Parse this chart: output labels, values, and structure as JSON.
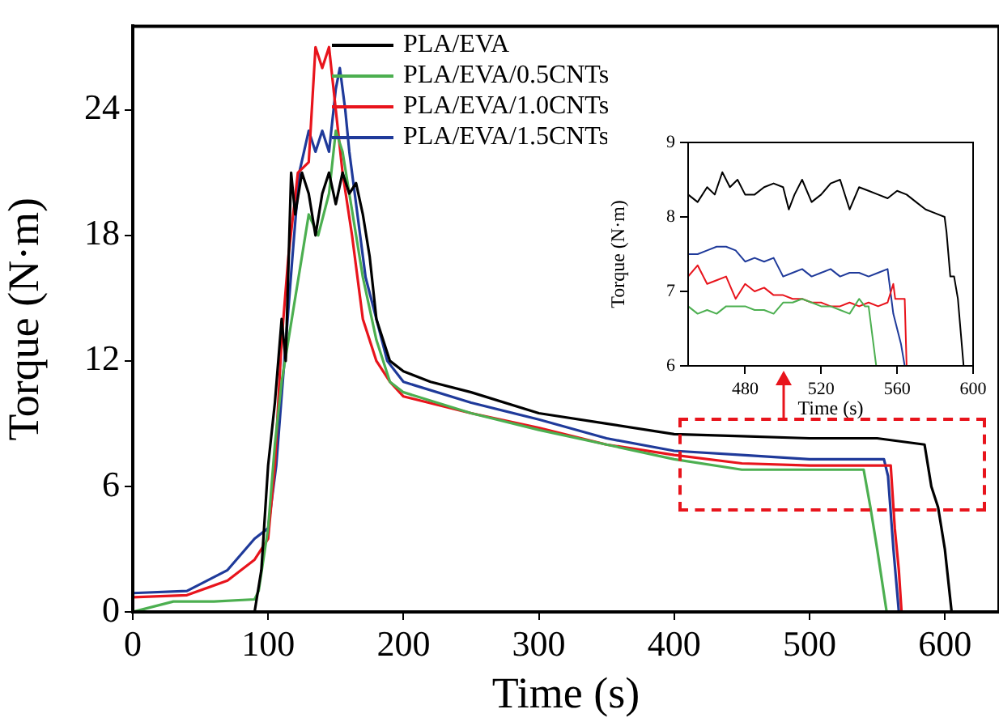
{
  "chart_data": [
    {
      "type": "line",
      "xlabel": "Time (s)",
      "ylabel": "Torque (N·m)",
      "xlim": [
        0,
        640
      ],
      "xticks": [
        0,
        100,
        200,
        300,
        400,
        500,
        600
      ],
      "ylim": [
        0,
        28
      ],
      "yticks": [
        0,
        6,
        12,
        18,
        24
      ],
      "legend": "top",
      "grid": false,
      "series": [
        {
          "name": "PLA/EVA",
          "color": "#000000",
          "x": [
            0,
            60,
            90,
            95,
            100,
            105,
            110,
            113,
            117,
            120,
            125,
            130,
            135,
            140,
            145,
            150,
            155,
            160,
            165,
            170,
            175,
            180,
            190,
            200,
            220,
            250,
            300,
            350,
            400,
            450,
            500,
            550,
            585,
            590,
            595,
            600,
            605,
            630
          ],
          "values": [
            0,
            0,
            0,
            2,
            7,
            10,
            14,
            12,
            21,
            19,
            21,
            20,
            18,
            20,
            21,
            19.5,
            21,
            20,
            20.5,
            19,
            17,
            14,
            12,
            11.5,
            11,
            10.5,
            9.5,
            9,
            8.5,
            8.4,
            8.3,
            8.3,
            8,
            6,
            5,
            3,
            0,
            0
          ]
        },
        {
          "name": "PLA/EVA/0.5CNTs",
          "color": "#4caf50",
          "x": [
            0,
            30,
            60,
            90,
            93,
            100,
            105,
            110,
            115,
            120,
            125,
            130,
            137,
            145,
            150,
            155,
            160,
            170,
            180,
            190,
            200,
            250,
            300,
            350,
            400,
            450,
            500,
            540,
            545,
            550,
            557,
            630
          ],
          "values": [
            0,
            0.5,
            0.5,
            0.6,
            1,
            4,
            8,
            11,
            13,
            15,
            17,
            19,
            18,
            20,
            23,
            22,
            20,
            16,
            13,
            11,
            10.5,
            9.5,
            8.7,
            8,
            7.3,
            6.8,
            6.8,
            6.8,
            5,
            3,
            0,
            0
          ]
        },
        {
          "name": "PLA/EVA/1.0CNTs",
          "color": "#e8141c",
          "x": [
            0,
            40,
            70,
            90,
            100,
            105,
            110,
            115,
            122,
            130,
            135,
            140,
            145,
            150,
            155,
            162,
            170,
            180,
            190,
            200,
            250,
            300,
            350,
            400,
            450,
            500,
            560,
            563,
            566,
            568,
            630
          ],
          "values": [
            0.7,
            0.8,
            1.5,
            2.5,
            3.5,
            7,
            13,
            17,
            21,
            21.5,
            27,
            26,
            27,
            24,
            21,
            18,
            14,
            12,
            11,
            10.3,
            9.5,
            8.8,
            8,
            7.5,
            7.1,
            7,
            7,
            4,
            2,
            0,
            0
          ]
        },
        {
          "name": "PLA/EVA/1.5CNTs",
          "color": "#1f3a9a",
          "x": [
            0,
            40,
            70,
            90,
            100,
            106,
            112,
            118,
            123,
            130,
            135,
            140,
            145,
            150,
            153,
            157,
            160,
            166,
            172,
            180,
            188,
            200,
            250,
            300,
            350,
            400,
            450,
            500,
            555,
            558,
            562,
            566,
            630
          ],
          "values": [
            0.9,
            1,
            2,
            3.5,
            4,
            7,
            12,
            17,
            21,
            23,
            22,
            23,
            22,
            25,
            26,
            24,
            22,
            19,
            16,
            14,
            12,
            11,
            10,
            9.2,
            8.3,
            7.7,
            7.5,
            7.3,
            7.3,
            6.5,
            3,
            0,
            0
          ]
        }
      ]
    },
    {
      "type": "line",
      "xlabel": "Time (s)",
      "ylabel": "Torque (N·m)",
      "xlim": [
        450,
        600
      ],
      "xticks": [
        480,
        520,
        560,
        600
      ],
      "ylim": [
        6,
        9
      ],
      "yticks": [
        6,
        7,
        8,
        9
      ],
      "grid": false,
      "series": [
        {
          "color": "#000000",
          "x": [
            450,
            455,
            460,
            464,
            468,
            472,
            476,
            480,
            485,
            490,
            495,
            500,
            503,
            506,
            510,
            515,
            520,
            525,
            530,
            535,
            540,
            545,
            550,
            555,
            560,
            565,
            570,
            575,
            580,
            585,
            586,
            588,
            590,
            592,
            595
          ],
          "values": [
            8.3,
            8.2,
            8.4,
            8.3,
            8.6,
            8.4,
            8.5,
            8.3,
            8.3,
            8.4,
            8.45,
            8.4,
            8.1,
            8.3,
            8.5,
            8.2,
            8.3,
            8.45,
            8.5,
            8.1,
            8.4,
            8.35,
            8.3,
            8.25,
            8.35,
            8.3,
            8.2,
            8.1,
            8.05,
            8.0,
            7.8,
            7.2,
            7.2,
            6.9,
            6
          ]
        },
        {
          "color": "#4caf50",
          "x": [
            450,
            455,
            460,
            465,
            470,
            475,
            480,
            485,
            490,
            495,
            500,
            505,
            510,
            515,
            520,
            525,
            530,
            535,
            540,
            543,
            545,
            547,
            549
          ],
          "values": [
            6.8,
            6.7,
            6.75,
            6.7,
            6.8,
            6.8,
            6.8,
            6.75,
            6.75,
            6.7,
            6.85,
            6.85,
            6.9,
            6.85,
            6.8,
            6.8,
            6.75,
            6.7,
            6.9,
            6.8,
            6.8,
            6.4,
            6
          ]
        },
        {
          "color": "#e8141c",
          "x": [
            450,
            455,
            460,
            465,
            470,
            475,
            480,
            485,
            490,
            495,
            500,
            505,
            510,
            515,
            520,
            525,
            530,
            535,
            540,
            545,
            550,
            555,
            558,
            559,
            564,
            565
          ],
          "values": [
            7.2,
            7.35,
            7.1,
            7.15,
            7.2,
            6.9,
            7.1,
            7.0,
            7.05,
            6.95,
            6.95,
            6.9,
            6.9,
            6.85,
            6.85,
            6.8,
            6.8,
            6.85,
            6.8,
            6.85,
            6.8,
            6.85,
            7.1,
            6.9,
            6.9,
            6
          ]
        },
        {
          "color": "#1f3a9a",
          "x": [
            450,
            455,
            460,
            465,
            470,
            475,
            480,
            485,
            490,
            495,
            500,
            505,
            510,
            515,
            520,
            525,
            530,
            535,
            540,
            545,
            550,
            555,
            558,
            562,
            564
          ],
          "values": [
            7.5,
            7.5,
            7.55,
            7.6,
            7.6,
            7.55,
            7.4,
            7.45,
            7.4,
            7.45,
            7.2,
            7.25,
            7.3,
            7.2,
            7.25,
            7.3,
            7.2,
            7.25,
            7.25,
            7.2,
            7.25,
            7.3,
            6.7,
            6.3,
            6
          ]
        }
      ]
    }
  ]
}
